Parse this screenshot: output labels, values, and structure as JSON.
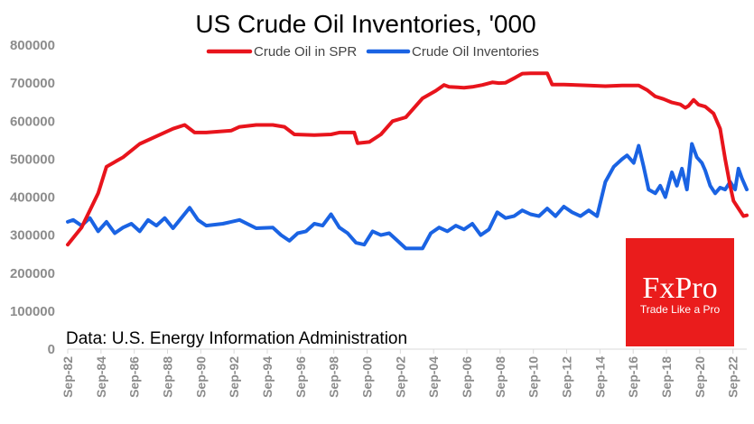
{
  "chart_data": {
    "type": "line",
    "title": "US Crude Oil Inventories, '000",
    "xlabel": "",
    "ylabel": "",
    "ylim": [
      0,
      800000
    ],
    "yticks": [
      800000,
      700000,
      600000,
      500000,
      400000,
      300000,
      200000,
      100000,
      0
    ],
    "ytick_labels": [
      "800000",
      "700000",
      "600000",
      "500000",
      "400000",
      "300000",
      "200000",
      "100000",
      "0"
    ],
    "xlim": [
      1982.67,
      2023.5
    ],
    "xtick_labels": [
      "Sep-82",
      "Sep-84",
      "Sep-86",
      "Sep-88",
      "Sep-90",
      "Sep-92",
      "Sep-94",
      "Sep-96",
      "Sep-98",
      "Sep-00",
      "Sep-02",
      "Sep-04",
      "Sep-06",
      "Sep-08",
      "Sep-10",
      "Sep-12",
      "Sep-14",
      "Sep-16",
      "Sep-18",
      "Sep-20",
      "Sep-22"
    ],
    "grid": false,
    "legend": "top-center",
    "series": [
      {
        "name": "Crude Oil in SPR",
        "color": "#e8141c",
        "x": [
          1982.67,
          1983.5,
          1984.5,
          1985.0,
          1986.0,
          1987.0,
          1988.0,
          1989.0,
          1989.7,
          1990.3,
          1991.0,
          1992.5,
          1993.0,
          1994.0,
          1995.0,
          1995.7,
          1996.3,
          1997.5,
          1998.5,
          1999.0,
          1999.9,
          2000.1,
          2000.8,
          2001.5,
          2002.2,
          2003.0,
          2004.0,
          2004.8,
          2005.3,
          2005.6,
          2006.5,
          2007.0,
          2007.6,
          2008.2,
          2008.6,
          2009.0,
          2009.6,
          2010.0,
          2010.5,
          2011.0,
          2011.5,
          2011.8,
          2012.5,
          2014.0,
          2015.0,
          2016.0,
          2017.0,
          2017.5,
          2018.0,
          2018.5,
          2019.0,
          2019.5,
          2019.8,
          2020.0,
          2020.3,
          2020.6,
          2021.0,
          2021.5,
          2021.9,
          2022.2,
          2022.5,
          2022.7,
          2023.0,
          2023.3,
          2023.5
        ],
        "values": [
          275000,
          320000,
          410000,
          480000,
          505000,
          540000,
          560000,
          580000,
          590000,
          570000,
          570000,
          575000,
          585000,
          590000,
          590000,
          585000,
          565000,
          563000,
          565000,
          570000,
          570000,
          542000,
          545000,
          565000,
          600000,
          610000,
          660000,
          680000,
          695000,
          690000,
          688000,
          690000,
          695000,
          702000,
          700000,
          701000,
          715000,
          725000,
          726000,
          726000,
          726000,
          696000,
          696000,
          694000,
          692000,
          694000,
          694000,
          682000,
          665000,
          658000,
          649000,
          644000,
          635000,
          640000,
          656000,
          643000,
          638000,
          620000,
          580000,
          500000,
          430000,
          390000,
          370000,
          350000,
          352000
        ]
      },
      {
        "name": "Crude Oil Inventories",
        "color": "#1a63e3",
        "x": [
          1982.67,
          1983.0,
          1983.5,
          1984.0,
          1984.5,
          1985.0,
          1985.5,
          1986.0,
          1986.5,
          1987.0,
          1987.5,
          1988.0,
          1988.5,
          1989.0,
          1989.5,
          1990.0,
          1990.5,
          1991.0,
          1992.0,
          1993.0,
          1994.0,
          1995.0,
          1995.5,
          1996.0,
          1996.5,
          1997.0,
          1997.5,
          1998.0,
          1998.5,
          1999.0,
          1999.5,
          2000.0,
          2000.5,
          2001.0,
          2001.5,
          2002.0,
          2002.5,
          2003.0,
          2003.5,
          2004.0,
          2004.5,
          2005.0,
          2005.5,
          2006.0,
          2006.5,
          2007.0,
          2007.5,
          2008.0,
          2008.5,
          2009.0,
          2009.5,
          2010.0,
          2010.5,
          2011.0,
          2011.5,
          2012.0,
          2012.5,
          2013.0,
          2013.5,
          2014.0,
          2014.5,
          2015.0,
          2015.5,
          2016.0,
          2016.3,
          2016.7,
          2017.0,
          2017.3,
          2017.6,
          2018.0,
          2018.3,
          2018.6,
          2019.0,
          2019.3,
          2019.6,
          2019.9,
          2020.2,
          2020.5,
          2020.8,
          2021.0,
          2021.3,
          2021.6,
          2021.9,
          2022.2,
          2022.5,
          2022.8,
          2023.0,
          2023.2,
          2023.5
        ],
        "values": [
          335000,
          340000,
          325000,
          345000,
          310000,
          335000,
          305000,
          320000,
          330000,
          310000,
          340000,
          325000,
          345000,
          318000,
          345000,
          372000,
          340000,
          325000,
          330000,
          340000,
          318000,
          320000,
          300000,
          285000,
          305000,
          310000,
          330000,
          325000,
          355000,
          320000,
          305000,
          280000,
          275000,
          310000,
          300000,
          305000,
          285000,
          265000,
          265000,
          265000,
          305000,
          320000,
          310000,
          325000,
          315000,
          330000,
          300000,
          315000,
          360000,
          345000,
          350000,
          365000,
          355000,
          350000,
          370000,
          350000,
          375000,
          360000,
          350000,
          365000,
          350000,
          440000,
          480000,
          500000,
          510000,
          490000,
          535000,
          480000,
          420000,
          410000,
          430000,
          400000,
          465000,
          430000,
          475000,
          420000,
          540000,
          505000,
          490000,
          470000,
          430000,
          410000,
          425000,
          420000,
          440000,
          420000,
          475000,
          450000,
          420000
        ]
      }
    ]
  },
  "source_note": "Data: U.S. Energy Information Administration",
  "logo": {
    "brand": "FxPro",
    "tagline": "Trade Like a Pro",
    "color": "#ea1c1c"
  }
}
